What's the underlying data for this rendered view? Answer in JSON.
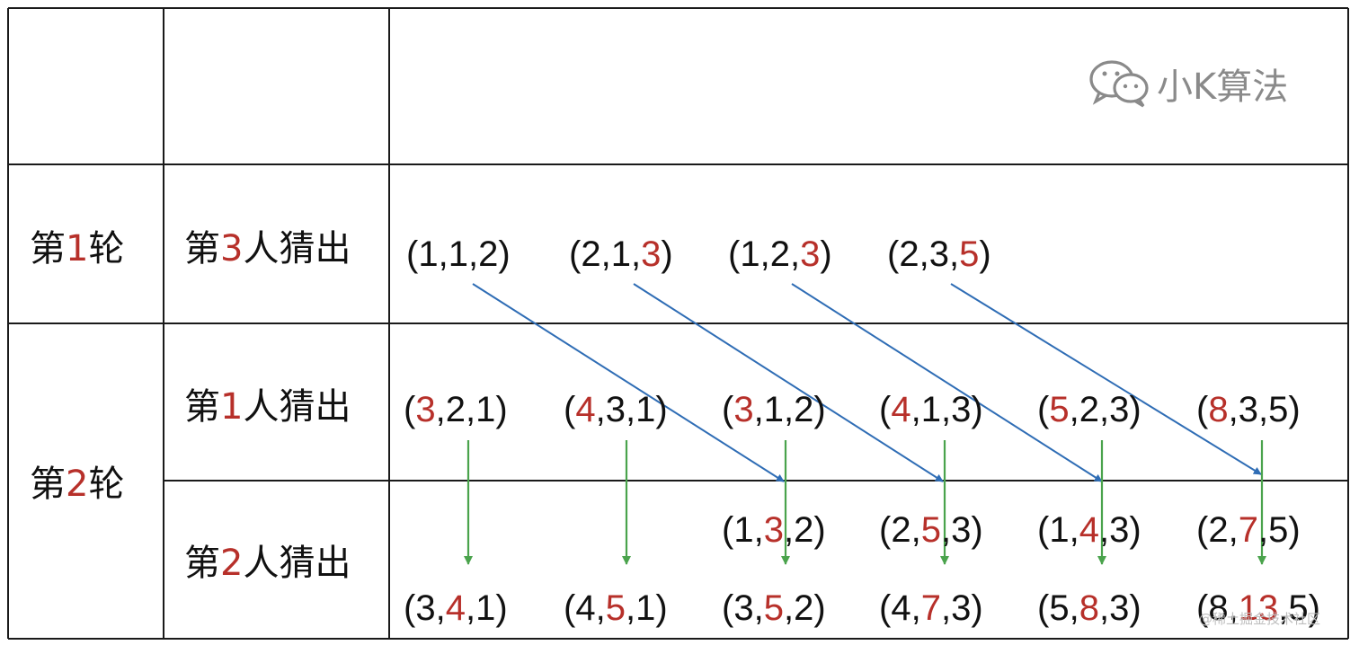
{
  "brand": {
    "name": "小K算法",
    "icon": "wechat-icon"
  },
  "watermark": "@稀土掘金技术社区",
  "colors": {
    "highlight": "#b7302a",
    "text": "#111111",
    "prev_arrow": "#2f6db5",
    "down_arrow": "#4aa34c",
    "grid": "#1a1a1a"
  },
  "rows": [
    {
      "round": {
        "pre": "第",
        "num": "1",
        "post": "轮"
      },
      "guesser": {
        "pre": "第",
        "num": "3",
        "post": "人猜出"
      }
    },
    {
      "round": {
        "pre": "第",
        "num": "2",
        "post": "轮"
      },
      "guesser": {
        "pre": "第",
        "num": "1",
        "post": "人猜出"
      }
    },
    {
      "guesser": {
        "pre": "第",
        "num": "2",
        "post": "人猜出"
      }
    }
  ],
  "round1_guess3": [
    {
      "values": [
        "1",
        "1",
        "2"
      ],
      "highlight": -1
    },
    {
      "values": [
        "2",
        "1",
        "3"
      ],
      "highlight": 2
    },
    {
      "values": [
        "1",
        "2",
        "3"
      ],
      "highlight": 2
    },
    {
      "values": [
        "2",
        "3",
        "5"
      ],
      "highlight": 2
    }
  ],
  "round2_guess1": [
    {
      "values": [
        "3",
        "2",
        "1"
      ],
      "highlight": 0
    },
    {
      "values": [
        "4",
        "3",
        "1"
      ],
      "highlight": 0
    },
    {
      "values": [
        "3",
        "1",
        "2"
      ],
      "highlight": 0
    },
    {
      "values": [
        "4",
        "1",
        "3"
      ],
      "highlight": 0
    },
    {
      "values": [
        "5",
        "2",
        "3"
      ],
      "highlight": 0
    },
    {
      "values": [
        "8",
        "3",
        "5"
      ],
      "highlight": 0
    }
  ],
  "round2_guess2_upper": [
    {
      "values": [
        "1",
        "3",
        "2"
      ],
      "highlight": 1
    },
    {
      "values": [
        "2",
        "5",
        "3"
      ],
      "highlight": 1
    },
    {
      "values": [
        "1",
        "4",
        "3"
      ],
      "highlight": 1
    },
    {
      "values": [
        "2",
        "7",
        "5"
      ],
      "highlight": 1
    }
  ],
  "round2_guess2_lower": [
    {
      "values": [
        "3",
        "4",
        "1"
      ],
      "highlight": 1
    },
    {
      "values": [
        "4",
        "5",
        "1"
      ],
      "highlight": 1
    },
    {
      "values": [
        "3",
        "5",
        "2"
      ],
      "highlight": 1
    },
    {
      "values": [
        "4",
        "7",
        "3"
      ],
      "highlight": 1
    },
    {
      "values": [
        "5",
        "8",
        "3"
      ],
      "highlight": 1
    },
    {
      "values": [
        "8",
        "13",
        "5"
      ],
      "highlight": 1
    }
  ]
}
